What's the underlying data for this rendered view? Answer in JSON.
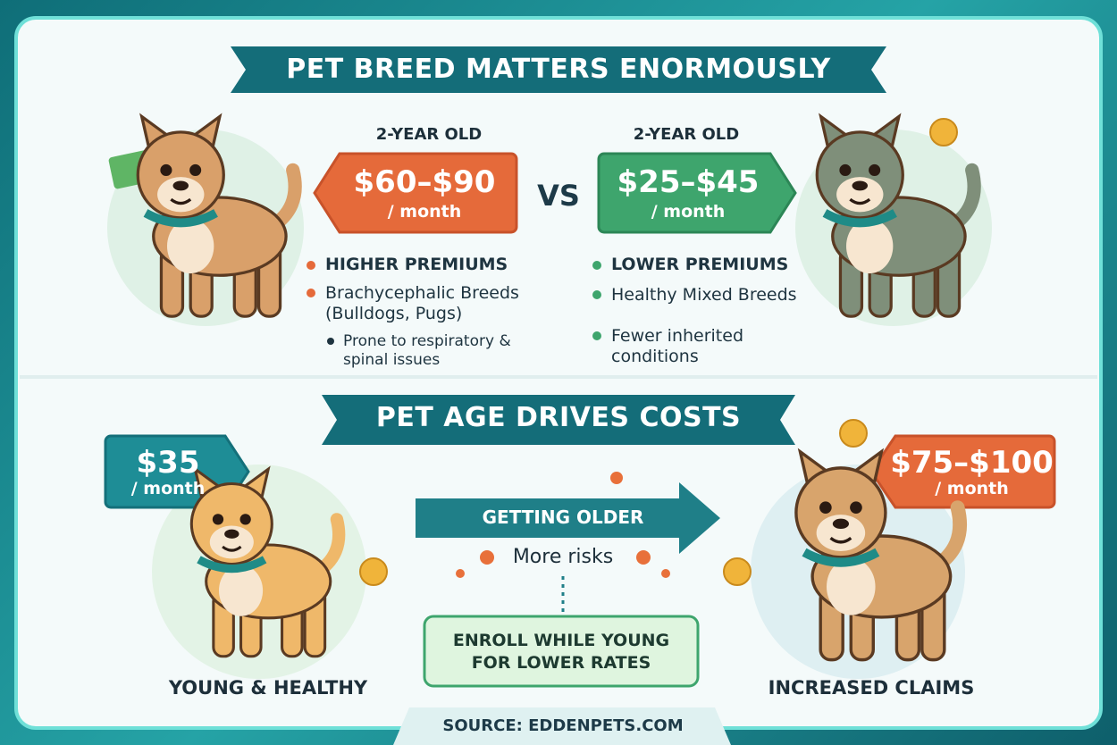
{
  "breed_section": {
    "title": "PET BREED MATTERS ENORMOUSLY",
    "left": {
      "age": "2-YEAR OLD",
      "price": "$60–$90",
      "period": "/ month",
      "points": [
        "HIGHER PREMIUMS",
        "Brachycephalic Breeds (Bulldogs, Pugs)",
        "Prone to respiratory & spinal issues"
      ]
    },
    "vs": "VS",
    "right": {
      "age": "2-YEAR OLD",
      "price": "$25–$45",
      "period": "/ month",
      "points": [
        "LOWER PREMIUMS",
        "Healthy Mixed Breeds",
        "Fewer inherited conditions"
      ]
    }
  },
  "age_section": {
    "title": "PET AGE DRIVES COSTS",
    "young": {
      "price": "$35",
      "period": "/ month",
      "label": "YOUNG & HEALTHY"
    },
    "arrow": "GETTING OLDER",
    "risks": "More risks",
    "tip": "ENROLL WHILE YOUNG FOR LOWER RATES",
    "old": {
      "price": "$75–$100",
      "period": "/ month",
      "label": "INCREASED CLAIMS"
    }
  },
  "source": "SOURCE: EDDENPETS.COM"
}
